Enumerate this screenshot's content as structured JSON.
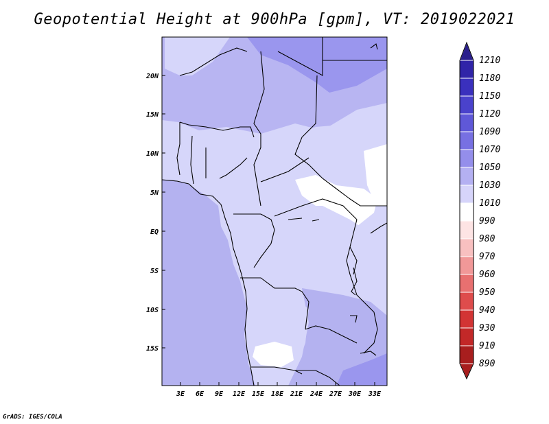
{
  "title": "Geopotential Height at 900hPa [gpm], VT: 2019022021",
  "credit": "GrADS: IGES/COLA",
  "map": {
    "lat_labels": [
      "20N",
      "15N",
      "10N",
      "5N",
      "EQ",
      "5S",
      "10S",
      "15S"
    ],
    "lon_labels": [
      "3E",
      "6E",
      "9E",
      "12E",
      "15E",
      "18E",
      "21E",
      "24E",
      "27E",
      "30E",
      "33E"
    ],
    "colors": {
      "ocean": "#b4b2f0",
      "land_default": "#d6d6fa",
      "high": "#9a96ee",
      "low": "#ffffff",
      "border": "#000000"
    }
  },
  "colorbar": {
    "levels": [
      "1210",
      "1180",
      "1150",
      "1120",
      "1090",
      "1070",
      "1050",
      "1030",
      "1010",
      "990",
      "980",
      "970",
      "960",
      "950",
      "940",
      "930",
      "910",
      "890"
    ],
    "colors": [
      "#2a1f8c",
      "#3024a8",
      "#3a30bd",
      "#4a42cc",
      "#5f58d8",
      "#7770e2",
      "#948eeb",
      "#b4b0f2",
      "#d6d4fa",
      "#ffffff",
      "#fde4e4",
      "#f8c0c0",
      "#f19898",
      "#e87070",
      "#de4c4c",
      "#d23434",
      "#c22828",
      "#a81e1e"
    ]
  }
}
